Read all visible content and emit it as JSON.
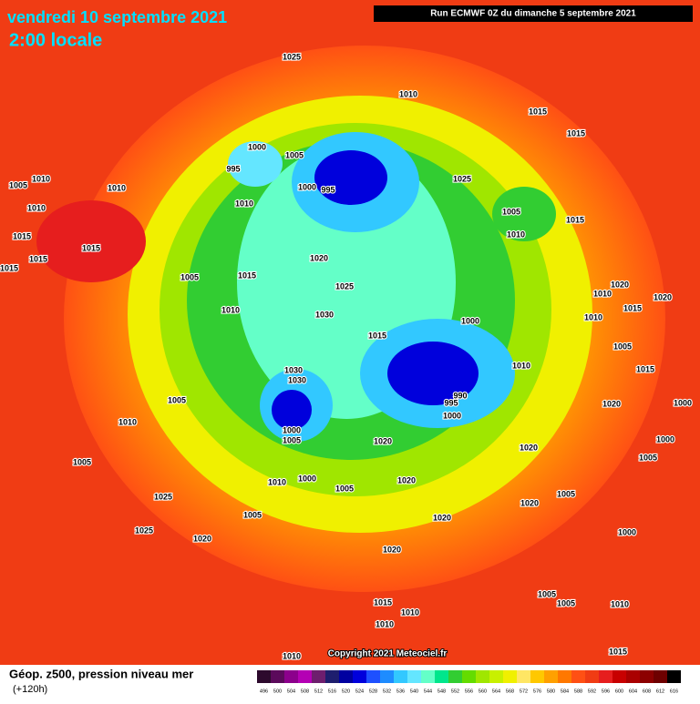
{
  "header": {
    "date": "vendredi 10 septembre 2021",
    "time": "2:00 locale",
    "run": "Run ECMWF 0Z du dimanche 5 septembre 2021"
  },
  "copyright": "Copyright 2021 Meteociel.fr",
  "legend": {
    "title": "Géop. z500, pression niveau mer",
    "lead": "(+120h)",
    "scale": [
      {
        "value": 496,
        "color": "#2d0a2d"
      },
      {
        "value": 500,
        "color": "#5b0a5b"
      },
      {
        "value": 504,
        "color": "#8c008c"
      },
      {
        "value": 508,
        "color": "#b400b4"
      },
      {
        "value": 512,
        "color": "#6e1e6e"
      },
      {
        "value": 516,
        "color": "#1e1e6e"
      },
      {
        "value": 520,
        "color": "#0000a0"
      },
      {
        "value": 524,
        "color": "#0000dc"
      },
      {
        "value": 528,
        "color": "#1e50ff"
      },
      {
        "value": 532,
        "color": "#1e8cff"
      },
      {
        "value": 536,
        "color": "#32c8ff"
      },
      {
        "value": 540,
        "color": "#64e6ff"
      },
      {
        "value": 544,
        "color": "#64ffc8"
      },
      {
        "value": 548,
        "color": "#00e68c"
      },
      {
        "value": 552,
        "color": "#32cd32"
      },
      {
        "value": 556,
        "color": "#64dc00"
      },
      {
        "value": 560,
        "color": "#a0e600"
      },
      {
        "value": 564,
        "color": "#c8f000"
      },
      {
        "value": 568,
        "color": "#f0f000"
      },
      {
        "value": 572,
        "color": "#ffe664"
      },
      {
        "value": 576,
        "color": "#ffc800"
      },
      {
        "value": 580,
        "color": "#ffa000"
      },
      {
        "value": 584,
        "color": "#ff7800"
      },
      {
        "value": 588,
        "color": "#ff5014"
      },
      {
        "value": 592,
        "color": "#f03c14"
      },
      {
        "value": 596,
        "color": "#e61e1e"
      },
      {
        "value": 600,
        "color": "#c80000"
      },
      {
        "value": 604,
        "color": "#aa0000"
      },
      {
        "value": 608,
        "color": "#8c0000"
      },
      {
        "value": 612,
        "color": "#6e0000"
      },
      {
        "value": 616,
        "color": "#000000"
      }
    ]
  },
  "isobar_labels": [
    1025,
    1010,
    1015,
    1015,
    1000,
    1005,
    995,
    1000,
    995,
    1025,
    1010,
    1005,
    1010,
    1010,
    1010,
    1005,
    1015,
    1010,
    1015,
    1015,
    1015,
    1015,
    1020,
    1005,
    1015,
    1025,
    1010,
    1020,
    1020,
    1010,
    1030,
    1015,
    1010,
    1000,
    1015,
    1005,
    1010,
    1015,
    1030,
    1030,
    990,
    995,
    1005,
    1020,
    1000,
    1000,
    1010,
    1000,
    1005,
    1020,
    1020,
    1000,
    1005,
    1005,
    1010,
    1000,
    1020,
    1005,
    1005,
    1025,
    1020,
    1020,
    1005,
    1025,
    1000,
    1020,
    1020,
    1005,
    1005,
    1010,
    1015,
    1010,
    1010,
    1010,
    1015
  ]
}
